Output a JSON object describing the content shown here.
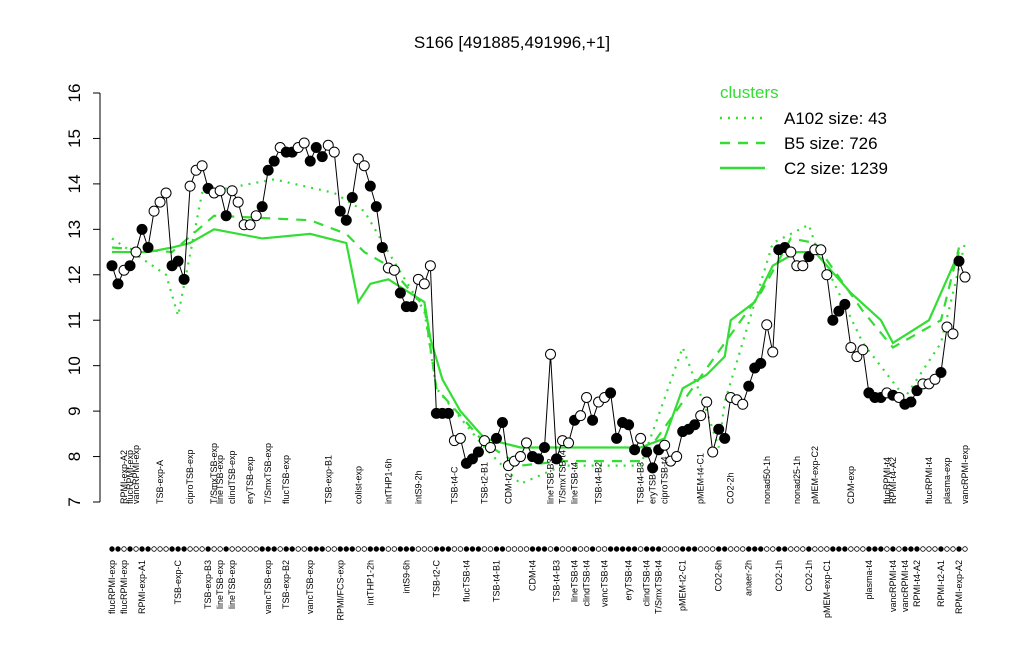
{
  "chart_data": {
    "type": "line",
    "title": "S166 [491885,491996,+1]",
    "ylim": [
      7,
      16
    ],
    "yticks": [
      7,
      8,
      9,
      10,
      11,
      12,
      13,
      14,
      15,
      16
    ],
    "points": {
      "values": [
        12.2,
        11.8,
        12.1,
        12.2,
        12.5,
        13.0,
        12.6,
        13.4,
        13.6,
        13.8,
        12.2,
        12.3,
        11.9,
        13.95,
        14.3,
        14.4,
        13.9,
        13.8,
        13.85,
        13.3,
        13.85,
        13.6,
        13.1,
        13.1,
        13.3,
        13.5,
        14.3,
        14.5,
        14.8,
        14.7,
        14.7,
        14.8,
        14.9,
        14.5,
        14.8,
        14.6,
        14.85,
        14.7,
        13.4,
        13.2,
        13.7,
        14.55,
        14.4,
        13.95,
        13.5,
        12.6,
        12.15,
        12.1,
        11.6,
        11.3,
        11.3,
        11.9,
        11.8,
        12.2,
        8.95,
        8.95,
        8.95,
        8.35,
        8.4,
        7.85,
        7.95,
        8.1,
        8.35,
        8.2,
        8.4,
        8.75,
        7.8,
        7.9,
        8.0,
        8.3,
        8.0,
        7.95,
        8.2,
        10.25,
        7.95,
        8.35,
        8.3,
        8.8,
        8.9,
        9.3,
        8.8,
        9.2,
        9.3,
        9.4,
        8.4,
        8.75,
        8.7,
        8.15,
        8.4,
        8.1,
        7.75,
        8.15,
        8.25,
        7.9,
        8.0,
        8.55,
        8.6,
        8.7,
        8.9,
        9.2,
        8.1,
        8.6,
        8.4,
        9.3,
        9.25,
        9.15,
        9.55,
        9.95,
        10.05,
        10.9,
        10.3,
        12.55,
        12.6,
        12.5,
        12.2,
        12.2,
        12.4,
        12.55,
        12.55,
        12.0,
        11.0,
        11.2,
        11.35,
        10.4,
        10.2,
        10.35,
        9.4,
        9.3,
        9.3,
        9.4,
        9.35,
        9.3,
        9.15,
        9.2,
        9.45,
        9.6,
        9.6,
        9.7,
        9.85,
        10.85,
        10.7,
        12.3,
        11.95
      ],
      "filled": [
        true,
        true,
        false,
        true,
        false,
        true,
        true,
        false,
        false,
        false,
        true,
        true,
        true,
        false,
        false,
        false,
        true,
        false,
        false,
        true,
        false,
        false,
        false,
        false,
        false,
        true,
        true,
        true,
        false,
        true,
        true,
        false,
        false,
        true,
        true,
        true,
        false,
        false,
        true,
        true,
        true,
        false,
        false,
        true,
        true,
        true,
        false,
        false,
        true,
        true,
        true,
        false,
        false,
        false,
        true,
        true,
        true,
        false,
        false,
        true,
        true,
        true,
        false,
        false,
        true,
        true,
        false,
        false,
        false,
        false,
        true,
        true,
        true,
        false,
        true,
        false,
        false,
        true,
        false,
        false,
        true,
        false,
        false,
        true,
        true,
        true,
        true,
        true,
        false,
        true,
        true,
        true,
        false,
        false,
        false,
        true,
        true,
        true,
        false,
        false,
        false,
        true,
        true,
        false,
        false,
        false,
        true,
        true,
        true,
        false,
        false,
        true,
        true,
        false,
        false,
        false,
        true,
        false,
        false,
        false,
        true,
        true,
        true,
        false,
        false,
        false,
        true,
        true,
        true,
        false,
        true,
        false,
        true,
        true,
        true,
        false,
        false,
        false,
        true,
        false,
        false,
        true,
        false
      ]
    },
    "legend_title": "clusters",
    "legend_position": "top-right",
    "series": [
      {
        "name": "A102 size: 43",
        "color": "#33dd33",
        "style": "dotted",
        "x": [
          1,
          10,
          12,
          16,
          28,
          38,
          43,
          47,
          53,
          55,
          63,
          69,
          76,
          89,
          96,
          100,
          102,
          103,
          111,
          117,
          118,
          126,
          133,
          139,
          143
        ],
        "values": [
          12.8,
          12.0,
          11.1,
          13.8,
          14.1,
          13.8,
          13.4,
          12.5,
          11.2,
          9.5,
          8.2,
          7.4,
          7.8,
          7.8,
          10.4,
          9.0,
          8.2,
          9.2,
          12.7,
          13.1,
          12.7,
          10.5,
          9.3,
          10.5,
          12.7
        ]
      },
      {
        "name": "B5 size: 726",
        "color": "#33dd33",
        "style": "dashed",
        "x": [
          1,
          11,
          18,
          34,
          40,
          43,
          47,
          53,
          55,
          63,
          69,
          76,
          89,
          96,
          103,
          109,
          114,
          118,
          126,
          131,
          139,
          142
        ],
        "values": [
          12.6,
          12.5,
          13.3,
          13.2,
          12.9,
          12.5,
          12.2,
          11.3,
          9.5,
          8.3,
          7.8,
          7.9,
          7.9,
          9.2,
          10.5,
          11.6,
          12.8,
          12.7,
          11.2,
          10.4,
          11.0,
          12.6
        ]
      },
      {
        "name": "C2 size: 1239",
        "color": "#33dd33",
        "style": "solid",
        "x": [
          1,
          7,
          11,
          14,
          18,
          26,
          34,
          40,
          42,
          44,
          47,
          53,
          54,
          56,
          59,
          63,
          69,
          76,
          89,
          93,
          96,
          100,
          103,
          104,
          108,
          111,
          115,
          118,
          124,
          129,
          131,
          137,
          139,
          142
        ],
        "values": [
          12.5,
          12.5,
          12.6,
          12.7,
          13.0,
          12.8,
          12.9,
          12.7,
          11.4,
          11.8,
          11.9,
          11.4,
          10.6,
          9.7,
          9.0,
          8.4,
          8.2,
          8.2,
          8.2,
          8.4,
          9.5,
          9.8,
          10.2,
          11.0,
          11.4,
          12.2,
          12.5,
          12.5,
          11.6,
          11.0,
          10.5,
          11.0,
          11.6,
          12.5
        ]
      }
    ],
    "labels_top": {
      "x": [
        3,
        4,
        5,
        9,
        14,
        18,
        19,
        21,
        24,
        27,
        30,
        37,
        42,
        47,
        52,
        58,
        63,
        67,
        74,
        76,
        78,
        82,
        89,
        91,
        93,
        99,
        104,
        110,
        115,
        118,
        124,
        130,
        131,
        137,
        140,
        143
      ],
      "labels": [
        "RPMI-exp-A2",
        "flucRPMI-exp",
        "vancRPMI-exp",
        "TSB-exp-A",
        "ciproTSB-exp",
        "T/SmxTSB-exp",
        "lineTSB-exp",
        "clindTSB-exp",
        "eryTSB-exp",
        "T/SmxTSB-exp",
        "flucTSB-exp",
        "TSB-exp-B1",
        "colist-exp",
        "intTHP1-6h",
        "intS9-2h",
        "TSB-t4-C",
        "TSB-t2-B1",
        "CDM-t2",
        "lineTSB-B3",
        "T/SmxTSB-t4",
        "lineTSB-t4",
        "TSB-t4-B2",
        "TSB-t4-B3",
        "eryTSB-t4",
        "ciproTSB-t4",
        "pMEM-t4-C1",
        "CO2-2h",
        "nonad50-1h",
        "nonad25-1h",
        "pMEM-exp-C2",
        "CDM-exp",
        "flucRPMI-t4",
        "RPMI-t4-A2",
        "flucRPMI-t4",
        "plasma-exp",
        "vancRPMI-exp"
      ]
    },
    "labels_bottom": {
      "x": [
        1,
        3,
        6,
        12,
        17,
        19,
        21,
        27,
        30,
        34,
        39,
        44,
        50,
        55,
        60,
        65,
        71,
        75,
        78,
        80,
        83,
        87,
        90,
        92,
        96,
        102,
        107,
        112,
        117,
        120,
        127,
        131,
        133,
        135,
        139,
        142
      ],
      "labels": [
        "flucRPMI-exp",
        "flucRPMI-exp",
        "RPMI-exp-A1",
        "TSB-exp-C",
        "TSB-exp-B3",
        "lineTSB-exp",
        "lineTSB-exp",
        "vancTSB-exp",
        "TSB-exp-B2",
        "vancTSB-exp",
        "RPMI/FCS-exp",
        "intTHP1-2h",
        "intS9-6h",
        "TSB-t2-C",
        "flucTSB-t4",
        "TSB-t4-B1",
        "CDM-t4",
        "TSB-t4-B3",
        "lineTSB-t4",
        "clindTSB-t4",
        "vancTSB-t4",
        "eryTSB-t4",
        "clindTSB-t4",
        "T/SmxTSB-t4",
        "pMEM-t2-C1",
        "CO2-6h",
        "anaer-2h",
        "CO2-1h",
        "CO2-1h",
        "pMEM-exp-C1",
        "plasma-t4",
        "vancRPMI-t4",
        "vancRPMI-t4",
        "RPMI-t4-A2",
        "RPMI-t2-A1",
        "RPMI-exp-A2"
      ]
    }
  }
}
